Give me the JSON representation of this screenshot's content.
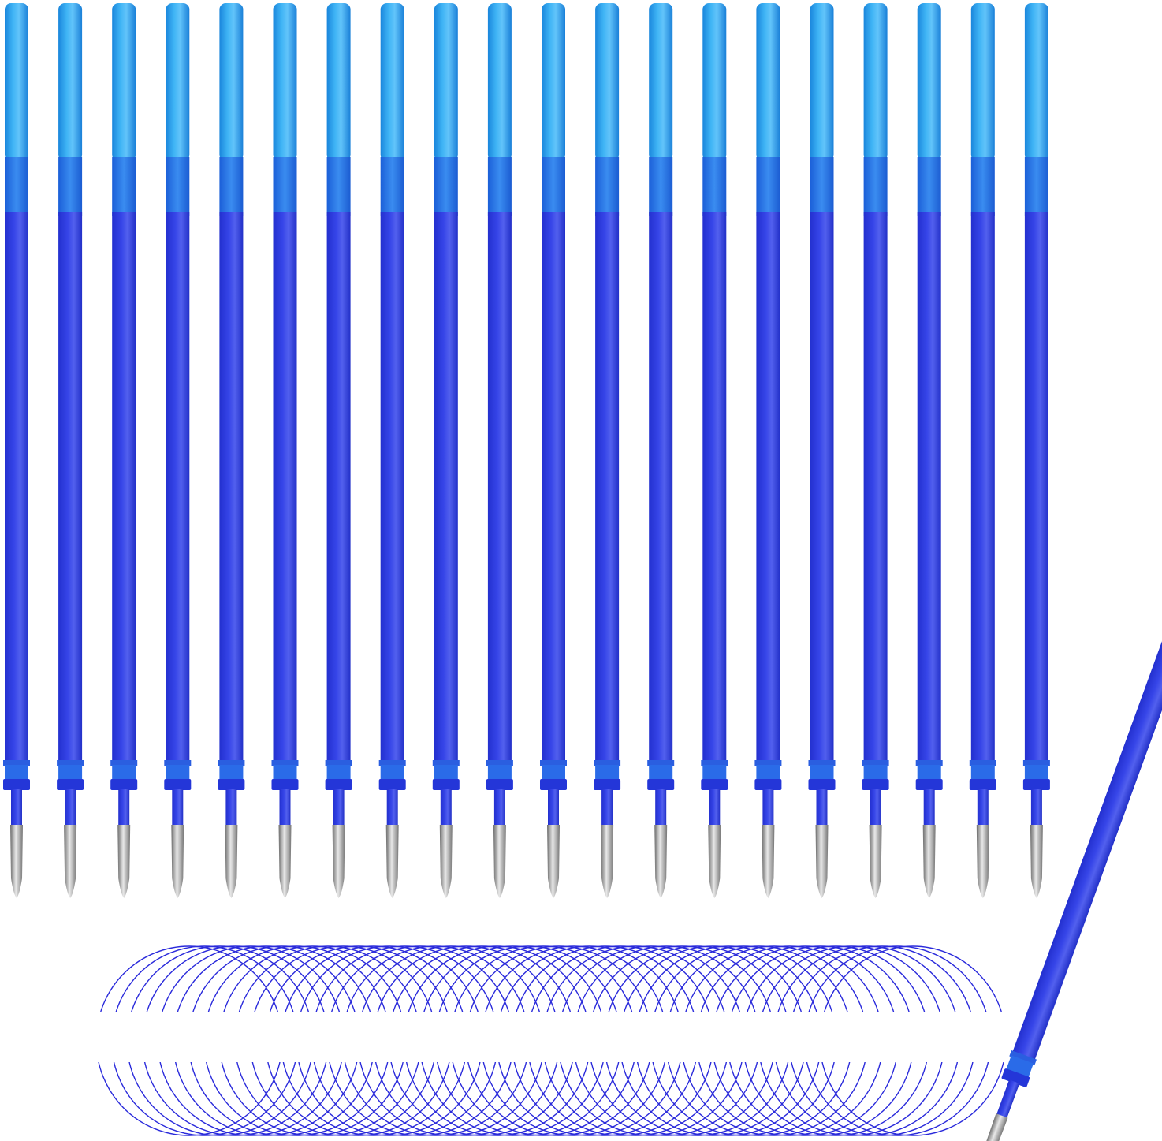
{
  "product": {
    "refill_count_vertical": 20,
    "loose_refill_count": 1,
    "spiral_loops": 48
  },
  "colors": {
    "background": "#ffffff",
    "top_light_blue": "#2aa3ee",
    "mid_blue": "#2a78e6",
    "ink_blue": "#2f3fe0",
    "ink_highlight": "#5a68f0",
    "metal_tip": "#9a9a9a",
    "spiral_line": "#2a2adb"
  }
}
